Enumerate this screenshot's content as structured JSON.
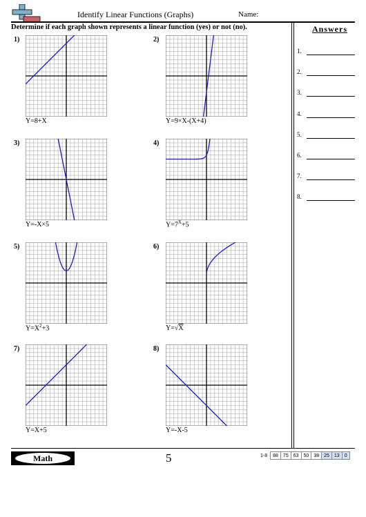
{
  "header": {
    "title": "Identify Linear Functions (Graphs)",
    "name_label": "Name:",
    "instructions": "Determine if each graph shown represents a linear function (yes) or not (no).",
    "logo": "plus-minus-logo-icon"
  },
  "answers": {
    "title": "Answers",
    "items": [
      "1.",
      "2.",
      "3.",
      "4.",
      "5.",
      "6.",
      "7.",
      "8."
    ]
  },
  "problems": [
    {
      "number": "1)",
      "equation": "Y=8+X"
    },
    {
      "number": "2)",
      "equation": "Y=9×X-(X+4)"
    },
    {
      "number": "3)",
      "equation": "Y=-X×5"
    },
    {
      "number": "4)",
      "equation_base": "Y=7",
      "equation_sup": "X",
      "equation_tail": "+5"
    },
    {
      "number": "5)",
      "equation_base": "Y=X",
      "equation_sup": "2",
      "equation_tail": "+3"
    },
    {
      "number": "6)",
      "equation_base": "Y=",
      "equation_radical": "√",
      "equation_radicand": "X"
    },
    {
      "number": "7)",
      "equation": "Y=X+5"
    },
    {
      "number": "8)",
      "equation": "Y=-X-5"
    }
  ],
  "footer": {
    "subject": "Math",
    "page": "5",
    "score_label": "1-8",
    "scores": [
      "88",
      "75",
      "63",
      "50",
      "38",
      "25",
      "13",
      "0"
    ]
  },
  "colors": {
    "curve": "#1a1acc",
    "grid": "#b0b0b0",
    "highlight": "#cfe0f6"
  }
}
